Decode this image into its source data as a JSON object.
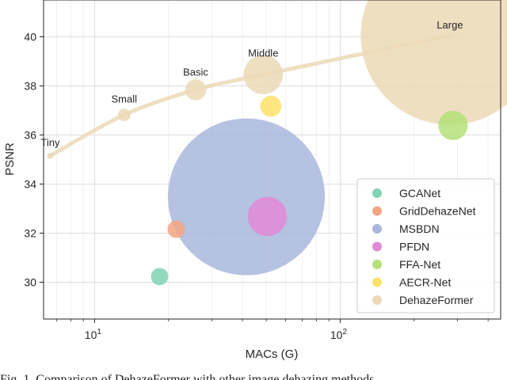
{
  "chart_data": {
    "type": "scatter",
    "xlabel": "MACs (G)",
    "ylabel": "PSNR",
    "xscale": "log",
    "xlim": [
      6.2,
      450
    ],
    "ylim": [
      28.5,
      41.5
    ],
    "yticks": [
      30,
      32,
      34,
      36,
      38,
      40
    ],
    "xticks_major": [
      {
        "value": 10,
        "base": "10",
        "exp": "1"
      },
      {
        "value": 100,
        "base": "10",
        "exp": "2"
      }
    ],
    "grid": true,
    "legend_position": "lower-right",
    "series": [
      {
        "name": "GCANet",
        "color": "#7fd4b4",
        "points": [
          {
            "x": 18.4,
            "y": 30.23,
            "size": 1
          }
        ]
      },
      {
        "name": "GridDehazeNet",
        "color": "#f4a582",
        "points": [
          {
            "x": 21.5,
            "y": 32.16,
            "size": 1
          }
        ]
      },
      {
        "name": "MSBDN",
        "color": "#a9b7dc",
        "points": [
          {
            "x": 41.5,
            "y": 33.48,
            "size": 3
          }
        ]
      },
      {
        "name": "PFDN",
        "color": "#e28ad6",
        "points": [
          {
            "x": 50.5,
            "y": 32.68,
            "size": 1.5
          }
        ]
      },
      {
        "name": "FFA-Net",
        "color": "#b4e07a",
        "points": [
          {
            "x": 288,
            "y": 36.39,
            "size": 1.3
          }
        ]
      },
      {
        "name": "AECR-Net",
        "color": "#fbe26a",
        "points": [
          {
            "x": 52.2,
            "y": 37.17,
            "size": 1.1
          }
        ]
      },
      {
        "name": "DehazeFormer",
        "color": "#ecd9b6",
        "points": [
          {
            "x": 6.6,
            "y": 35.15,
            "size": 0.6,
            "label": "Tiny"
          },
          {
            "x": 13.2,
            "y": 36.82,
            "size": 0.85,
            "label": "Small"
          },
          {
            "x": 25.8,
            "y": 37.84,
            "size": 1.1,
            "label": "Basic"
          },
          {
            "x": 48.6,
            "y": 38.46,
            "size": 1.5,
            "label": "Middle"
          },
          {
            "x": 279.7,
            "y": 40.05,
            "size": 3.2,
            "label": "Large"
          }
        ]
      }
    ]
  },
  "caption": "Fig. 1.   Comparison of DehazeFormer with other image dehazing methods"
}
